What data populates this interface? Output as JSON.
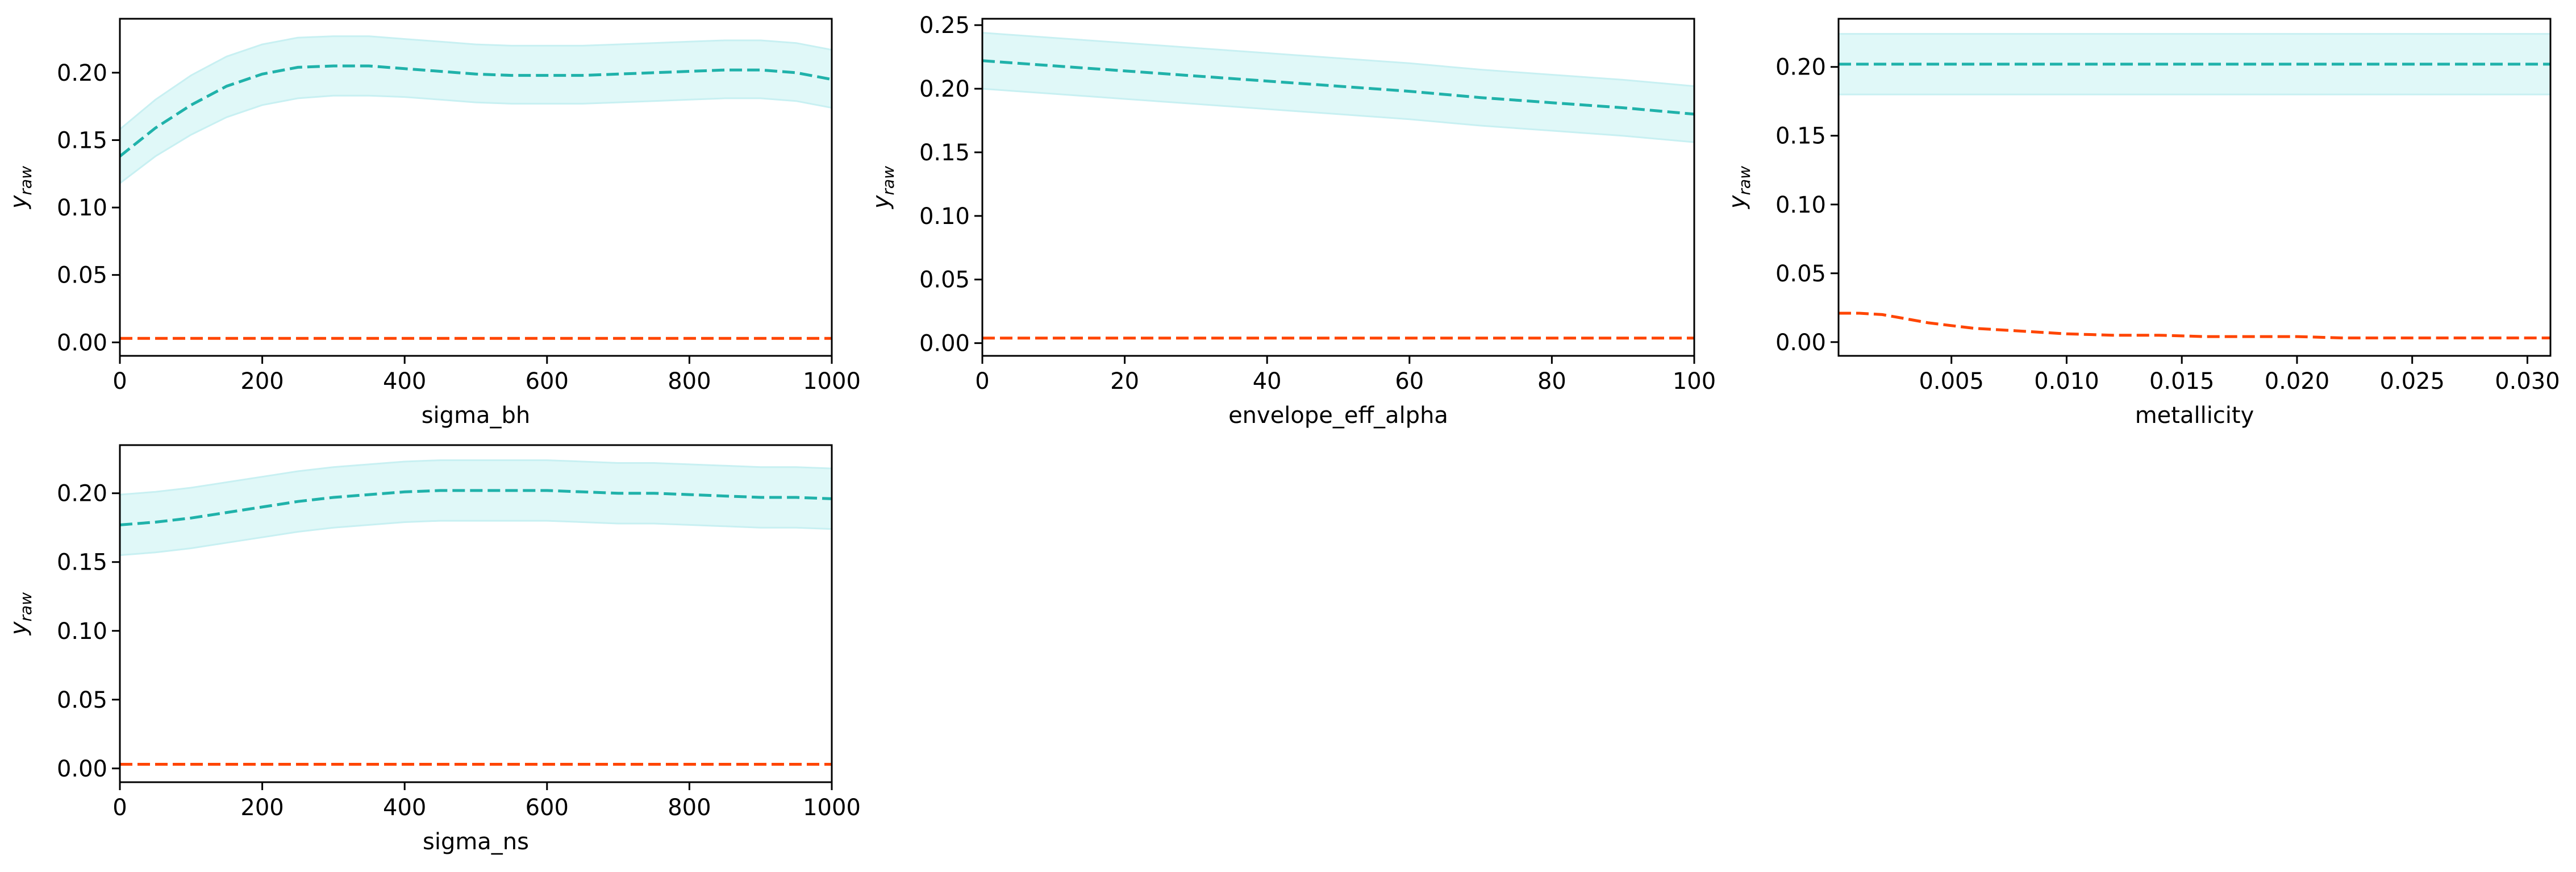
{
  "figure": {
    "background": "#ffffff"
  },
  "styles": {
    "band_color": "#e0f8f8",
    "band_edge": "#c8f0f2",
    "mean_color": "#20b2aa",
    "lower_color": "#ff4500"
  },
  "chart_data": [
    {
      "type": "line",
      "xlabel": "sigma_bh",
      "ylabel": "y_raw",
      "xlim": [
        0,
        1000
      ],
      "ylim": [
        -0.01,
        0.24
      ],
      "xticks": [
        0,
        200,
        400,
        600,
        800,
        1000
      ],
      "xtick_labels": [
        "0",
        "200",
        "400",
        "600",
        "800",
        "1000"
      ],
      "yticks": [
        0,
        0.05,
        0.1,
        0.15,
        0.2
      ],
      "ytick_labels": [
        "0.00",
        "0.05",
        "0.10",
        "0.15",
        "0.20"
      ],
      "x": [
        0,
        50,
        100,
        150,
        200,
        250,
        300,
        350,
        400,
        450,
        500,
        550,
        600,
        650,
        700,
        750,
        800,
        850,
        900,
        950,
        1000
      ],
      "series": [
        {
          "style": "dashed",
          "color": "#20b2aa",
          "values": [
            0.138,
            0.159,
            0.176,
            0.19,
            0.199,
            0.204,
            0.205,
            0.205,
            0.203,
            0.201,
            0.199,
            0.198,
            0.198,
            0.198,
            0.199,
            0.2,
            0.201,
            0.202,
            0.202,
            0.2,
            0.195
          ]
        },
        {
          "style": "dashed",
          "color": "#ff4500",
          "values": [
            0.003,
            0.003,
            0.003,
            0.003,
            0.003,
            0.003,
            0.003,
            0.003,
            0.003,
            0.003,
            0.003,
            0.003,
            0.003,
            0.003,
            0.003,
            0.003,
            0.003,
            0.003,
            0.003,
            0.003,
            0.003
          ]
        }
      ],
      "band": {
        "lower": [
          0.118,
          0.138,
          0.154,
          0.167,
          0.176,
          0.181,
          0.183,
          0.183,
          0.182,
          0.18,
          0.178,
          0.177,
          0.177,
          0.177,
          0.178,
          0.179,
          0.18,
          0.181,
          0.181,
          0.179,
          0.174
        ],
        "upper": [
          0.158,
          0.18,
          0.198,
          0.212,
          0.221,
          0.226,
          0.227,
          0.227,
          0.225,
          0.223,
          0.221,
          0.22,
          0.22,
          0.22,
          0.221,
          0.222,
          0.223,
          0.224,
          0.224,
          0.222,
          0.217
        ]
      }
    },
    {
      "type": "line",
      "xlabel": "envelope_eff_alpha",
      "ylabel": "y_raw",
      "xlim": [
        0,
        100
      ],
      "ylim": [
        -0.01,
        0.255
      ],
      "xticks": [
        0,
        20,
        40,
        60,
        80,
        100
      ],
      "xtick_labels": [
        "0",
        "20",
        "40",
        "60",
        "80",
        "100"
      ],
      "yticks": [
        0,
        0.05,
        0.1,
        0.15,
        0.2,
        0.25
      ],
      "ytick_labels": [
        "0.00",
        "0.05",
        "0.10",
        "0.15",
        "0.20",
        "0.25"
      ],
      "x": [
        0,
        10,
        20,
        30,
        40,
        50,
        60,
        70,
        80,
        90,
        100
      ],
      "series": [
        {
          "style": "dashed",
          "color": "#20b2aa",
          "values": [
            0.222,
            0.218,
            0.214,
            0.21,
            0.206,
            0.202,
            0.198,
            0.193,
            0.189,
            0.185,
            0.18
          ]
        },
        {
          "style": "dashed",
          "color": "#ff4500",
          "values": [
            0.004,
            0.004,
            0.004,
            0.004,
            0.004,
            0.004,
            0.004,
            0.004,
            0.004,
            0.004,
            0.004
          ]
        }
      ],
      "band": {
        "lower": [
          0.2,
          0.196,
          0.192,
          0.188,
          0.184,
          0.18,
          0.176,
          0.171,
          0.167,
          0.163,
          0.158
        ],
        "upper": [
          0.244,
          0.24,
          0.236,
          0.232,
          0.228,
          0.224,
          0.22,
          0.215,
          0.211,
          0.207,
          0.202
        ]
      }
    },
    {
      "type": "line",
      "xlabel": "metallicity",
      "ylabel": "y_raw",
      "xlim": [
        0.0001,
        0.031
      ],
      "ylim": [
        -0.01,
        0.235
      ],
      "xticks": [
        0.005,
        0.01,
        0.015,
        0.02,
        0.025,
        0.03
      ],
      "xtick_labels": [
        "0.005",
        "0.010",
        "0.015",
        "0.020",
        "0.025",
        "0.030"
      ],
      "yticks": [
        0,
        0.05,
        0.1,
        0.15,
        0.2
      ],
      "ytick_labels": [
        "0.00",
        "0.05",
        "0.10",
        "0.15",
        "0.20"
      ],
      "x": [
        0.0001,
        0.001,
        0.002,
        0.003,
        0.004,
        0.005,
        0.006,
        0.007,
        0.008,
        0.01,
        0.012,
        0.014,
        0.016,
        0.018,
        0.02,
        0.022,
        0.025,
        0.028,
        0.031
      ],
      "series": [
        {
          "style": "dashed",
          "color": "#20b2aa",
          "values": [
            0.202,
            0.202,
            0.202,
            0.202,
            0.202,
            0.202,
            0.202,
            0.202,
            0.202,
            0.202,
            0.202,
            0.202,
            0.202,
            0.202,
            0.202,
            0.202,
            0.202,
            0.202,
            0.202
          ]
        },
        {
          "style": "dashed",
          "color": "#ff4500",
          "values": [
            0.021,
            0.021,
            0.02,
            0.017,
            0.014,
            0.012,
            0.01,
            0.009,
            0.008,
            0.006,
            0.005,
            0.005,
            0.004,
            0.004,
            0.004,
            0.003,
            0.003,
            0.003,
            0.003
          ]
        }
      ],
      "band": {
        "lower": [
          0.18,
          0.18,
          0.18,
          0.18,
          0.18,
          0.18,
          0.18,
          0.18,
          0.18,
          0.18,
          0.18,
          0.18,
          0.18,
          0.18,
          0.18,
          0.18,
          0.18,
          0.18,
          0.18
        ],
        "upper": [
          0.224,
          0.224,
          0.224,
          0.224,
          0.224,
          0.224,
          0.224,
          0.224,
          0.224,
          0.224,
          0.224,
          0.224,
          0.224,
          0.224,
          0.224,
          0.224,
          0.224,
          0.224,
          0.224
        ]
      }
    },
    {
      "type": "line",
      "xlabel": "sigma_ns",
      "ylabel": "y_raw",
      "xlim": [
        0,
        1000
      ],
      "ylim": [
        -0.01,
        0.235
      ],
      "xticks": [
        0,
        200,
        400,
        600,
        800,
        1000
      ],
      "xtick_labels": [
        "0",
        "200",
        "400",
        "600",
        "800",
        "1000"
      ],
      "yticks": [
        0,
        0.05,
        0.1,
        0.15,
        0.2
      ],
      "ytick_labels": [
        "0.00",
        "0.05",
        "0.10",
        "0.15",
        "0.20"
      ],
      "x": [
        0,
        50,
        100,
        150,
        200,
        250,
        300,
        350,
        400,
        450,
        500,
        550,
        600,
        650,
        700,
        750,
        800,
        850,
        900,
        950,
        1000
      ],
      "series": [
        {
          "style": "dashed",
          "color": "#20b2aa",
          "values": [
            0.177,
            0.179,
            0.182,
            0.186,
            0.19,
            0.194,
            0.197,
            0.199,
            0.201,
            0.202,
            0.202,
            0.202,
            0.202,
            0.201,
            0.2,
            0.2,
            0.199,
            0.198,
            0.197,
            0.197,
            0.196
          ]
        },
        {
          "style": "dashed",
          "color": "#ff4500",
          "values": [
            0.003,
            0.003,
            0.003,
            0.003,
            0.003,
            0.003,
            0.003,
            0.003,
            0.003,
            0.003,
            0.003,
            0.003,
            0.003,
            0.003,
            0.003,
            0.003,
            0.003,
            0.003,
            0.003,
            0.003,
            0.003
          ]
        }
      ],
      "band": {
        "lower": [
          0.155,
          0.157,
          0.16,
          0.164,
          0.168,
          0.172,
          0.175,
          0.177,
          0.179,
          0.18,
          0.18,
          0.18,
          0.18,
          0.179,
          0.178,
          0.178,
          0.177,
          0.176,
          0.175,
          0.175,
          0.174
        ],
        "upper": [
          0.199,
          0.201,
          0.204,
          0.208,
          0.212,
          0.216,
          0.219,
          0.221,
          0.223,
          0.224,
          0.224,
          0.224,
          0.224,
          0.223,
          0.222,
          0.222,
          0.221,
          0.22,
          0.219,
          0.219,
          0.218
        ]
      }
    }
  ]
}
